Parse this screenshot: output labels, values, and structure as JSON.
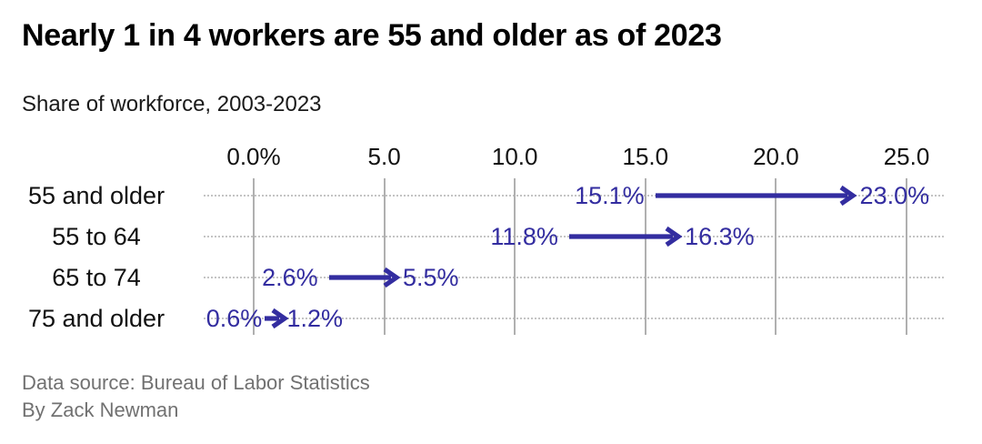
{
  "header": {
    "title": "Nearly 1 in 4 workers are 55 and older as of 2023",
    "subtitle": "Share of workforce, 2003-2023"
  },
  "footer": {
    "source": "Data source: Bureau of Labor Statistics",
    "byline": "By Zack Newman"
  },
  "colors": {
    "arrow": "#332da0",
    "gridline": "#b0b0b0",
    "dotted_guide": "#c4c4c4",
    "text": "#111111",
    "muted_text": "#717171"
  },
  "chart_data": {
    "type": "arrow-range",
    "title": "Nearly 1 in 4 workers are 55 and older as of 2023",
    "subtitle": "Share of workforce, 2003-2023",
    "categories": [
      "55 and older",
      "55 to 64",
      "65 to 74",
      "75 and older"
    ],
    "series": [
      {
        "name": "2003",
        "values": [
          15.1,
          11.8,
          2.6,
          0.6
        ]
      },
      {
        "name": "2023",
        "values": [
          23.0,
          16.3,
          5.5,
          1.2
        ]
      }
    ],
    "value_labels": [
      {
        "start": "15.1%",
        "end": "23.0%"
      },
      {
        "start": "11.8%",
        "end": "16.3%"
      },
      {
        "start": "2.6%",
        "end": "5.5%"
      },
      {
        "start": "0.6%",
        "end": "1.2%"
      }
    ],
    "x_ticks": [
      "0.0%",
      "5.0",
      "10.0",
      "15.0",
      "20.0",
      "25.0"
    ],
    "x_tick_values": [
      0,
      5,
      10,
      15,
      20,
      25
    ],
    "xlim": [
      0,
      25
    ],
    "grid": true,
    "legend_position": "none"
  }
}
